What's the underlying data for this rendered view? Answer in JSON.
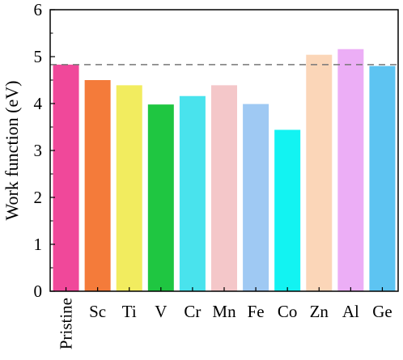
{
  "chart_data": {
    "type": "bar",
    "title": "",
    "xlabel": "",
    "ylabel": "Work function (eV)",
    "categories": [
      "Pristine",
      "Sc",
      "Ti",
      "V",
      "Cr",
      "Mn",
      "Fe",
      "Co",
      "Zn",
      "Al",
      "Ge"
    ],
    "values": [
      4.83,
      4.5,
      4.39,
      3.98,
      4.16,
      4.39,
      3.99,
      3.44,
      5.04,
      5.16,
      4.8
    ],
    "colors": [
      "#f0489a",
      "#f47b3a",
      "#f2ec5f",
      "#1fc641",
      "#49e3ed",
      "#f4c7c9",
      "#9fc9f3",
      "#12f3f2",
      "#fbd6b8",
      "#ecaef6",
      "#5dc4f2"
    ],
    "ylim": [
      0,
      6
    ],
    "yticks": [
      0,
      1,
      2,
      3,
      4,
      5,
      6
    ],
    "reference_line": {
      "value": 4.83,
      "style": "dashed",
      "color": "#777777"
    },
    "grid": false,
    "legend": "none"
  }
}
